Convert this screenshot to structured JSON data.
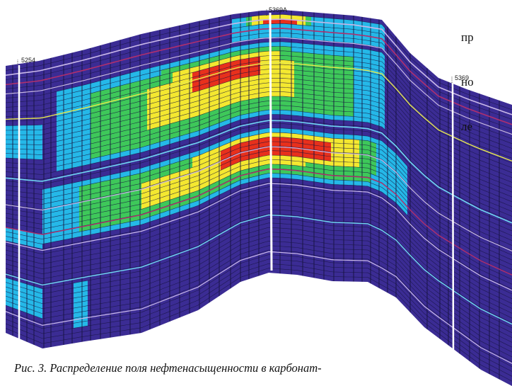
{
  "figure": {
    "wells": [
      "5254",
      "5369A",
      "5369"
    ],
    "caption": "Рис. 3. Распределение поля нефтенасыщенности в карбонат-",
    "colors": {
      "background": "#3b2c94",
      "cell_line": "#14123a",
      "horizon_lilac": "#c9b8e8",
      "horizon_magenta": "#b0306e",
      "horizon_yellow": "#e6e84b",
      "horizon_cyan": "#6fd6f0",
      "saturation_low": "#25b8e8",
      "saturation_mid": "#3ec85a",
      "saturation_high": "#f4e830",
      "saturation_max": "#e8301c"
    }
  },
  "side_text": {
    "lines": [
      "пр",
      "но",
      "ле"
    ]
  }
}
